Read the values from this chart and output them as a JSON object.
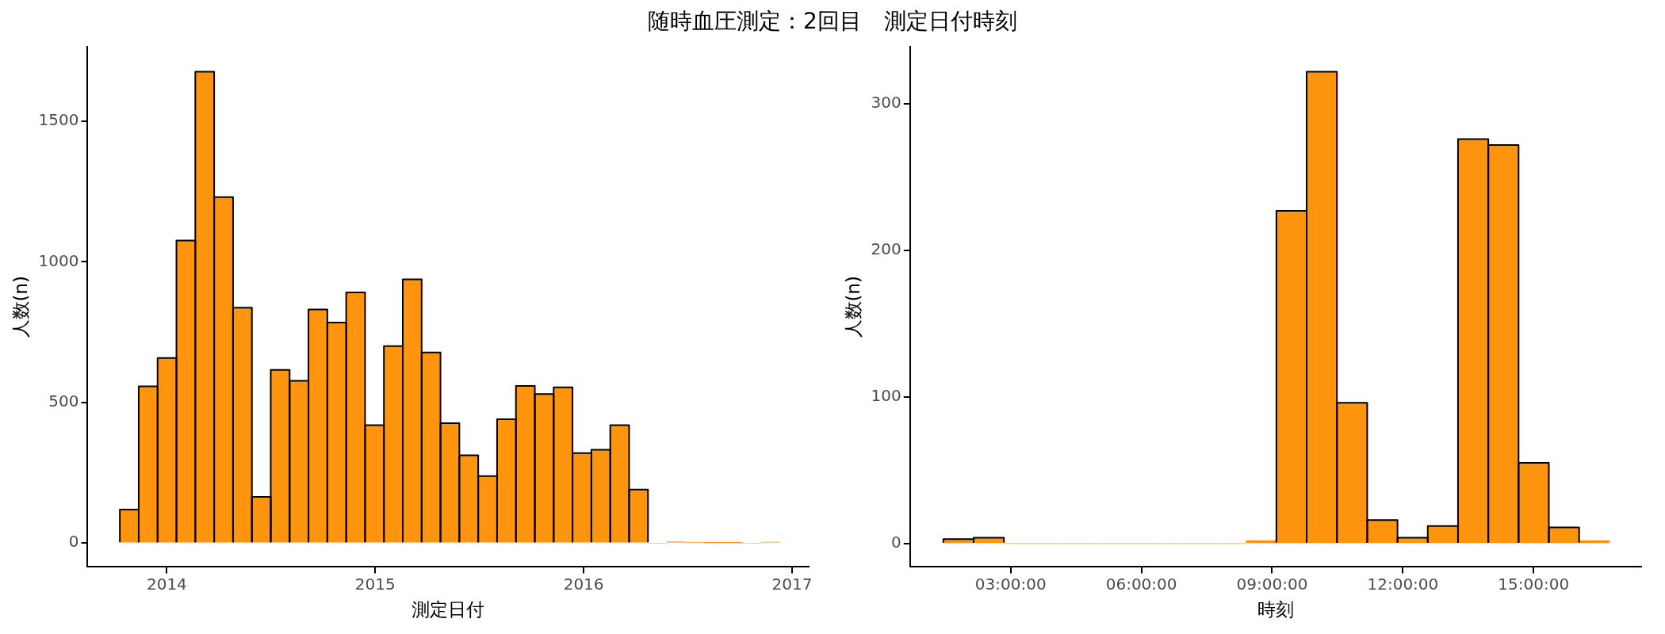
{
  "chart_data": [
    {
      "type": "histogram",
      "title": "随時血圧測定：2回目　測定日付時刻",
      "xlabel": "測定日付",
      "ylabel": "人数(n)",
      "color": "#ff950e",
      "bins": [
        2013.775,
        2013.865,
        2013.956,
        2014.046,
        2014.137,
        2014.227,
        2014.318,
        2014.408,
        2014.499,
        2014.589,
        2014.68,
        2014.77,
        2014.861,
        2014.951,
        2015.042,
        2015.132,
        2015.223,
        2015.313,
        2015.404,
        2015.494,
        2015.585,
        2015.675,
        2015.766,
        2015.856,
        2015.947,
        2016.037,
        2016.128,
        2016.218,
        2016.309,
        2016.399,
        2016.49,
        2016.58,
        2016.671,
        2016.761,
        2016.852,
        2016.942
      ],
      "values": [
        119,
        557,
        658,
        1076,
        1676,
        1230,
        837,
        164,
        616,
        577,
        831,
        784,
        891,
        419,
        700,
        938,
        678,
        426,
        312,
        238,
        440,
        559,
        530,
        554,
        320,
        332,
        419,
        190,
        0,
        5,
        2,
        1,
        1,
        0,
        3
      ],
      "xlim": [
        2013.62,
        2017.08
      ],
      "xticks": [
        2014,
        2015,
        2016,
        2017
      ],
      "ylim": [
        -85,
        1765
      ],
      "yticks": [
        0,
        500,
        1000,
        1500
      ],
      "grid": false,
      "legend": false
    },
    {
      "type": "histogram",
      "xlabel": "時刻",
      "ylabel": "人数(n)",
      "color": "#ff950e",
      "bins": [
        1.455,
        2.15,
        2.845,
        3.539,
        4.234,
        4.929,
        5.624,
        6.318,
        7.013,
        7.708,
        8.403,
        9.098,
        9.792,
        10.487,
        11.182,
        11.877,
        12.571,
        13.266,
        13.961,
        14.656,
        15.351,
        16.045,
        16.74
      ],
      "values": [
        3,
        4,
        0,
        0,
        0,
        0,
        0,
        0,
        0,
        0,
        2,
        227,
        322,
        96,
        16,
        4,
        12,
        276,
        272,
        55,
        11,
        2
      ],
      "xlim": [
        0.69,
        17.47
      ],
      "xticks": [
        {
          "value": 3,
          "label": "03:00:00"
        },
        {
          "value": 6,
          "label": "06:00:00"
        },
        {
          "value": 9,
          "label": "09:00:00"
        },
        {
          "value": 12,
          "label": "12:00:00"
        },
        {
          "value": 15,
          "label": "15:00:00"
        }
      ],
      "ylim": [
        -16,
        339
      ],
      "yticks": [
        0,
        100,
        200,
        300
      ],
      "grid": false,
      "legend": false
    }
  ]
}
